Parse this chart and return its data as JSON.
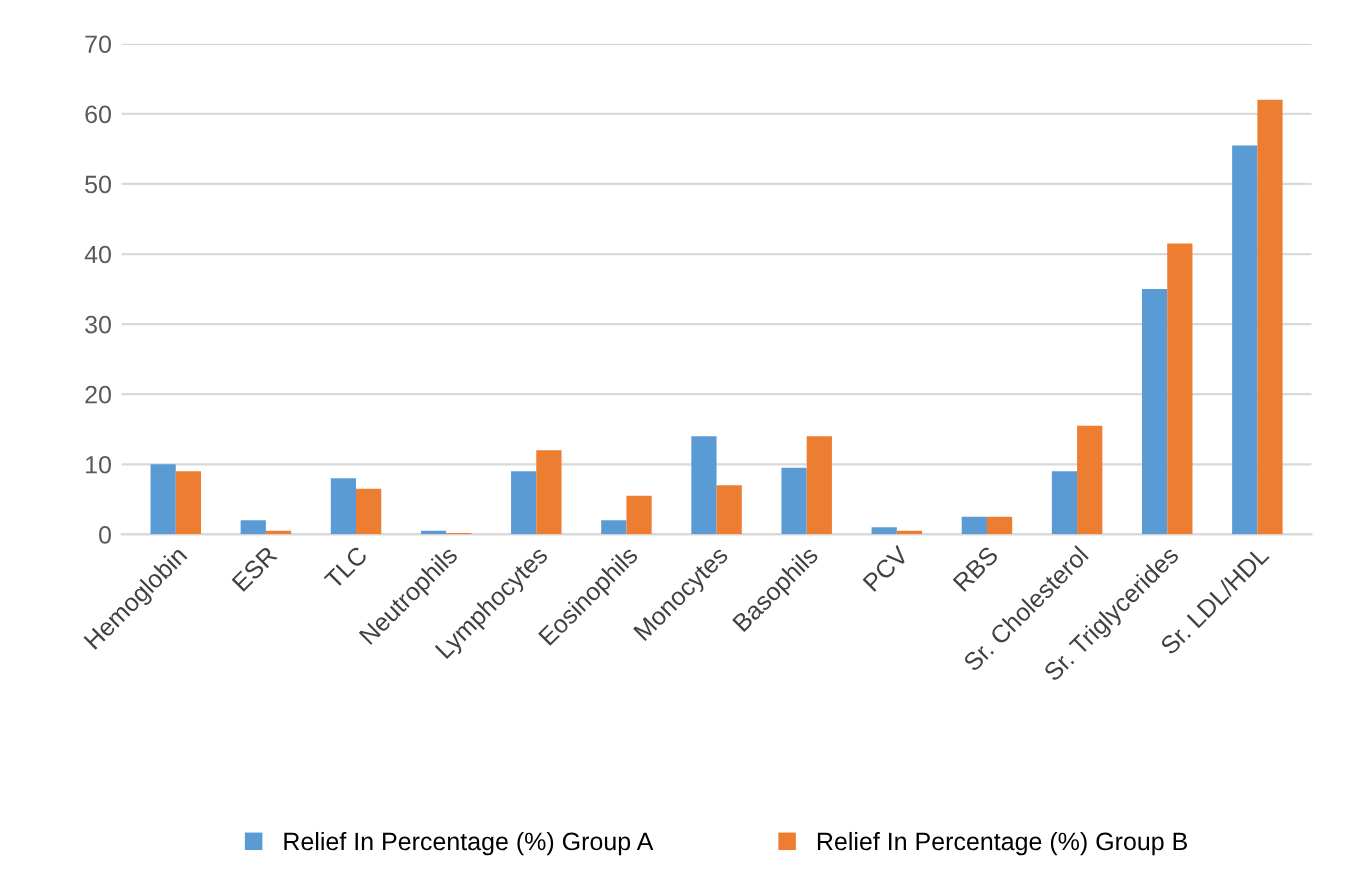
{
  "chart_data": {
    "type": "bar",
    "categories": [
      "Hemoglobin",
      "ESR",
      "TLC",
      "Neutrophils",
      "Lymphocytes",
      "Eosinophils",
      "Monocytes",
      "Basophils",
      "PCV",
      "RBS",
      "Sr. Cholesterol",
      "Sr. Triglycerides",
      "Sr. LDL/HDL"
    ],
    "series": [
      {
        "name": "Relief In Percentage (%) Group A",
        "color": "#5b9bd5",
        "values": [
          10,
          2,
          8,
          0.5,
          9,
          2,
          14,
          9.5,
          1,
          2.5,
          9,
          35,
          55.5
        ]
      },
      {
        "name": "Relief In Percentage (%) Group B",
        "color": "#ed7d31",
        "values": [
          9,
          0.5,
          6.5,
          0.2,
          12,
          5.5,
          7,
          14,
          0.5,
          2.5,
          15.5,
          41.5,
          62
        ]
      }
    ],
    "ylim": [
      0,
      70
    ],
    "yticks": [
      0,
      10,
      20,
      30,
      40,
      50,
      60,
      70
    ],
    "grid": "y",
    "legend": "bottom"
  }
}
